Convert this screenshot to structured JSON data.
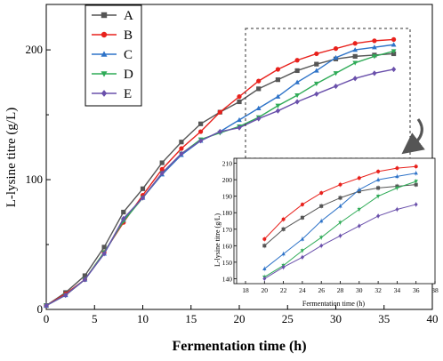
{
  "chart_data": [
    {
      "type": "line",
      "xlabel": "Fermentation time (h)",
      "ylabel": "L-lysine titre (g/L)",
      "xlim": [
        0,
        40
      ],
      "ylim": [
        0,
        235
      ],
      "x_ticks": [
        "0",
        "5",
        "10",
        "15",
        "20",
        "25",
        "30",
        "35",
        "40"
      ],
      "y_ticks": [
        "0",
        "100",
        "200"
      ],
      "legend_position": "top-left",
      "x": [
        0,
        2,
        4,
        6,
        8,
        10,
        12,
        14,
        16,
        18,
        20,
        22,
        24,
        26,
        28,
        30,
        32,
        34,
        36
      ],
      "series": [
        {
          "name": "A",
          "color": "#555555",
          "marker": "square",
          "values": [
            3,
            13,
            26,
            48,
            75,
            93,
            113,
            129,
            143,
            152,
            160,
            170,
            177,
            184,
            189,
            193,
            195,
            196,
            197
          ]
        },
        {
          "name": "B",
          "color": "#e8211c",
          "marker": "circle",
          "values": [
            3,
            12,
            23,
            44,
            67,
            88,
            108,
            124,
            137,
            152,
            164,
            176,
            185,
            192,
            197,
            201,
            205,
            207,
            208
          ]
        },
        {
          "name": "C",
          "color": "#2e73c8",
          "marker": "triangle-up",
          "values": [
            3,
            11,
            23,
            43,
            69,
            86,
            104,
            119,
            130,
            137,
            146,
            155,
            164,
            175,
            184,
            194,
            200,
            202,
            204
          ]
        },
        {
          "name": "D",
          "color": "#2fab57",
          "marker": "triangle-down",
          "values": [
            3,
            11,
            23,
            44,
            68,
            86,
            105,
            120,
            131,
            136,
            141,
            148,
            157,
            165,
            174,
            182,
            190,
            195,
            199
          ]
        },
        {
          "name": "E",
          "color": "#6a50ab",
          "marker": "diamond",
          "values": [
            3,
            11,
            23,
            43,
            70,
            86,
            105,
            120,
            130,
            137,
            140,
            147,
            153,
            160,
            166,
            172,
            178,
            182,
            185
          ]
        }
      ]
    },
    {
      "type": "line",
      "inset": true,
      "xlabel": "Fermentation time (h)",
      "ylabel": "L-lysine titre (g/L)",
      "xlim": [
        18,
        38
      ],
      "ylim": [
        137,
        213
      ],
      "x_ticks": [
        "18",
        "20",
        "22",
        "24",
        "26",
        "28",
        "30",
        "32",
        "34",
        "36",
        "38"
      ],
      "y_ticks": [
        "140",
        "150",
        "160",
        "170",
        "180",
        "190",
        "200",
        "210"
      ],
      "x": [
        20,
        22,
        24,
        26,
        28,
        30,
        32,
        34,
        36
      ],
      "series": [
        {
          "name": "A",
          "values": [
            160,
            170,
            177,
            184,
            189,
            193,
            195,
            196,
            197
          ]
        },
        {
          "name": "B",
          "values": [
            164,
            176,
            185,
            192,
            197,
            201,
            205,
            207,
            208
          ]
        },
        {
          "name": "C",
          "values": [
            146,
            155,
            164,
            175,
            184,
            194,
            200,
            202,
            204
          ]
        },
        {
          "name": "D",
          "values": [
            141,
            148,
            157,
            165,
            174,
            182,
            190,
            195,
            199
          ]
        },
        {
          "name": "E",
          "values": [
            140,
            147,
            153,
            160,
            166,
            172,
            178,
            182,
            185
          ]
        }
      ]
    }
  ]
}
